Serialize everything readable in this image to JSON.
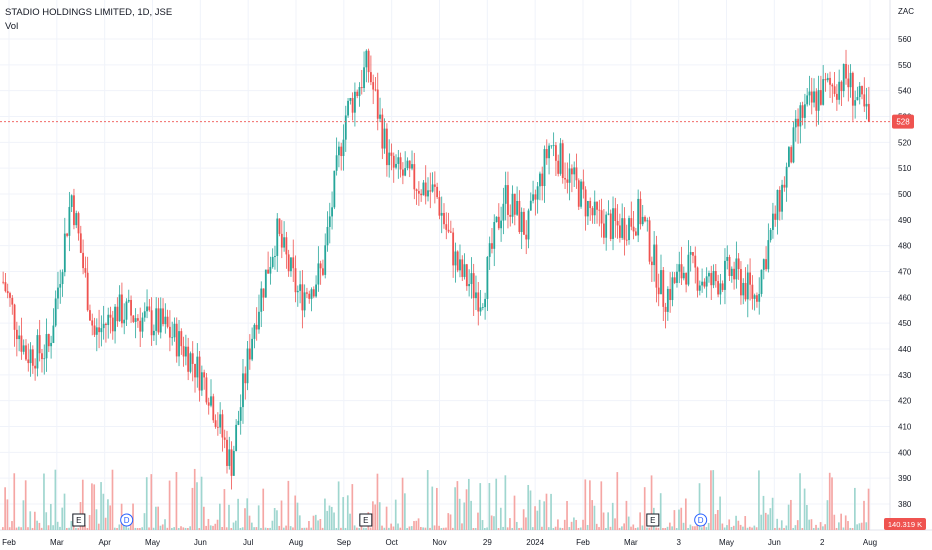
{
  "header": {
    "title": "STADIO HOLDINGS LIMITED, 1D, JSE",
    "volume_label": "Vol"
  },
  "currency": "ZAC",
  "last_price_label": "528",
  "volume_last_label": "140.319 K",
  "colors": {
    "up": "#26a69a",
    "down": "#ef5350",
    "up_vol": "#9fd6cf",
    "down_vol": "#f5a6a4",
    "grid": "#f0f3fa",
    "price_line": "#ef5350",
    "event_d": "#2962ff"
  },
  "events": [
    {
      "type": "E",
      "label": "E",
      "x_label": "Mar"
    },
    {
      "type": "D",
      "label": "D",
      "x_label": "Apr"
    },
    {
      "type": "E",
      "label": "E",
      "x_label": "Sep"
    },
    {
      "type": "E",
      "label": "E",
      "x_label": "Mar"
    },
    {
      "type": "D",
      "label": "D",
      "x_label": "3"
    }
  ],
  "chart_data": {
    "type": "candlestick",
    "title": "STADIO HOLDINGS LIMITED, 1D, JSE",
    "y_unit": "ZAC",
    "ylim": [
      375,
      565
    ],
    "y_ticks": [
      380,
      390,
      400,
      410,
      420,
      430,
      440,
      450,
      460,
      470,
      480,
      490,
      500,
      510,
      520,
      530,
      540,
      550,
      560
    ],
    "x_ticks": [
      "Feb",
      "Mar",
      "Apr",
      "May",
      "Jun",
      "Jul",
      "Aug",
      "Sep",
      "Oct",
      "Nov",
      "29",
      "2024",
      "Feb",
      "Mar",
      "3",
      "May",
      "Jun",
      "2",
      "Aug"
    ],
    "price_path": [
      {
        "date": "Feb",
        "close": 466
      },
      {
        "date": "Feb",
        "close": 438
      },
      {
        "date": "Mar",
        "close": 440
      },
      {
        "date": "Mar",
        "close": 500
      },
      {
        "date": "Mar",
        "close": 445
      },
      {
        "date": "Apr",
        "close": 455
      },
      {
        "date": "Apr",
        "close": 452
      },
      {
        "date": "May",
        "close": 449
      },
      {
        "date": "May",
        "close": 440
      },
      {
        "date": "May",
        "close": 425
      },
      {
        "date": "Jun",
        "close": 395
      },
      {
        "date": "Jun",
        "close": 450
      },
      {
        "date": "Jul",
        "close": 485
      },
      {
        "date": "Jul",
        "close": 460
      },
      {
        "date": "Aug",
        "close": 470
      },
      {
        "date": "Aug",
        "close": 530
      },
      {
        "date": "Sep",
        "close": 550
      },
      {
        "date": "Sep",
        "close": 510
      },
      {
        "date": "Oct",
        "close": 505
      },
      {
        "date": "Oct",
        "close": 500
      },
      {
        "date": "Nov",
        "close": 470
      },
      {
        "date": "Nov",
        "close": 460
      },
      {
        "date": "29",
        "close": 500
      },
      {
        "date": "29",
        "close": 485
      },
      {
        "date": "2024",
        "close": 520
      },
      {
        "date": "2024",
        "close": 505
      },
      {
        "date": "Feb",
        "close": 490
      },
      {
        "date": "Feb",
        "close": 487
      },
      {
        "date": "Mar",
        "close": 492
      },
      {
        "date": "Mar",
        "close": 460
      },
      {
        "date": "3",
        "close": 472
      },
      {
        "date": "May",
        "close": 465
      },
      {
        "date": "May",
        "close": 470
      },
      {
        "date": "Jun",
        "close": 460
      },
      {
        "date": "Jun",
        "close": 495
      },
      {
        "date": "2",
        "close": 530
      },
      {
        "date": "2",
        "close": 540
      },
      {
        "date": "Aug",
        "close": 545
      },
      {
        "date": "Aug",
        "close": 528
      }
    ],
    "last_close": 528,
    "volume_last": "140.319 K",
    "grid": true
  }
}
